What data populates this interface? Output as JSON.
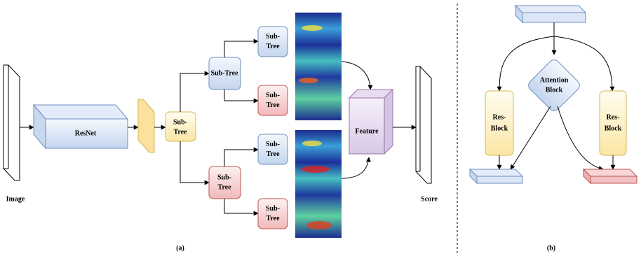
{
  "panel_a": {
    "input_label": "Image",
    "backbone": "ResNet",
    "root_tree": {
      "lines": [
        "Sub-",
        "Tree"
      ]
    },
    "mid_top_tree": {
      "lines": [
        "Sub-Tree"
      ]
    },
    "mid_bottom_tree": {
      "lines": [
        "Sub-",
        "Tree"
      ]
    },
    "leaf_trees": [
      {
        "lines": [
          "Sub-",
          "Tree"
        ]
      },
      {
        "lines": [
          "Sub-",
          "Tree"
        ]
      },
      {
        "lines": [
          "Sub-",
          "Tree"
        ]
      },
      {
        "lines": [
          "Sub-",
          "Tree"
        ]
      }
    ],
    "feature": "Feature",
    "output_label": "Score",
    "caption": "(a)"
  },
  "panel_b": {
    "attention": {
      "lines": [
        "Attention",
        "Block"
      ]
    },
    "res_blocks": [
      {
        "lines": [
          "Res-",
          "Block"
        ]
      },
      {
        "lines": [
          "Res-",
          "Block"
        ]
      }
    ],
    "caption": "(b)"
  }
}
